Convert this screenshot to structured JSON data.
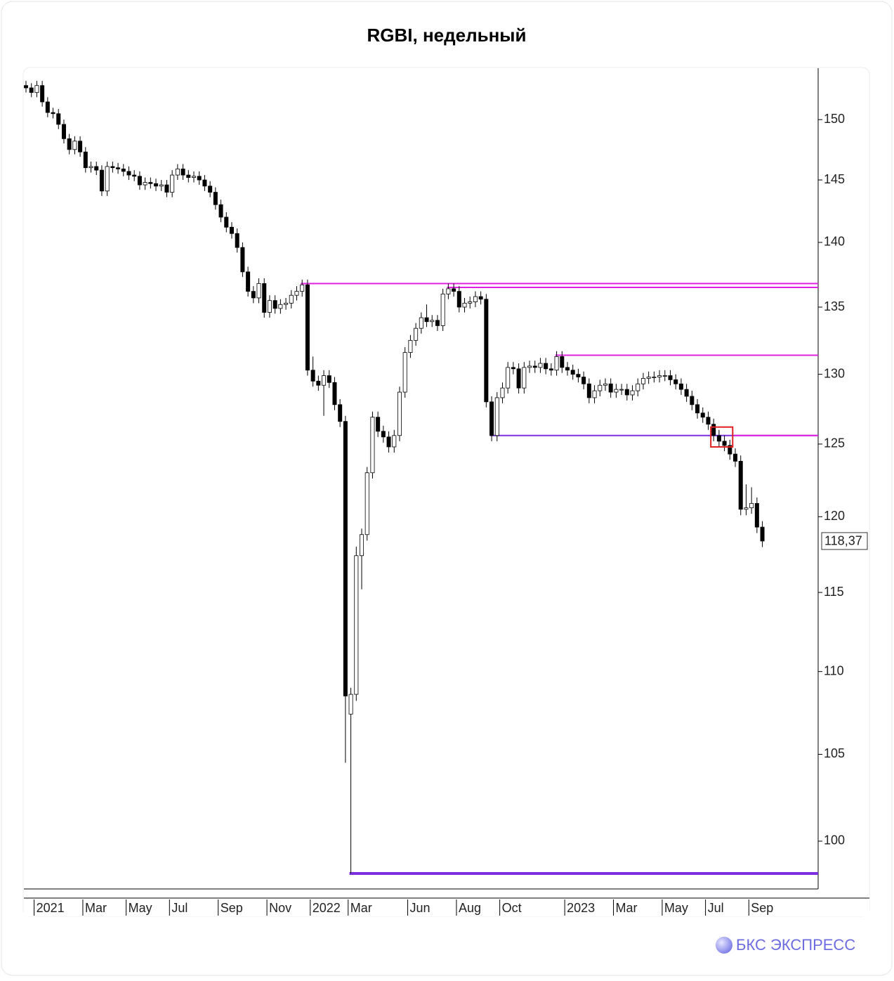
{
  "chart_data": {
    "type": "candlestick",
    "title": "RGBI, недельный",
    "log_scale": true,
    "categories": [
      null,
      null,
      "2021",
      null,
      null,
      null,
      null,
      null,
      null,
      null,
      null,
      "Mar",
      null,
      null,
      null,
      null,
      null,
      null,
      null,
      "May",
      null,
      null,
      null,
      null,
      null,
      null,
      null,
      "Jul",
      null,
      null,
      null,
      null,
      null,
      null,
      null,
      null,
      "Sep",
      null,
      null,
      null,
      null,
      null,
      null,
      null,
      null,
      "Nov",
      null,
      null,
      null,
      null,
      null,
      null,
      null,
      "2022",
      null,
      null,
      null,
      null,
      null,
      null,
      "Mar",
      null,
      null,
      null,
      null,
      null,
      null,
      null,
      null,
      null,
      null,
      "Jun",
      null,
      null,
      null,
      null,
      null,
      null,
      null,
      null,
      "Aug",
      null,
      null,
      null,
      null,
      null,
      null,
      null,
      "Oct",
      null,
      null,
      null,
      null,
      null,
      null,
      null,
      null,
      null,
      null,
      null,
      "2023",
      null,
      null,
      null,
      null,
      null,
      null,
      null,
      null,
      "Mar",
      null,
      null,
      null,
      null,
      null,
      null,
      null,
      null,
      "May",
      null,
      null,
      null,
      null,
      null,
      null,
      null,
      "Jul",
      null,
      null,
      null,
      null,
      null,
      null,
      null,
      "Sep",
      null,
      null
    ],
    "open": [
      152.9,
      152.7,
      152.3,
      152.9,
      151.5,
      150.6,
      150.5,
      149.6,
      148.4,
      147.5,
      148.2,
      147.3,
      146.0,
      146.1,
      145.8,
      144.1,
      146.1,
      146.0,
      145.9,
      145.7,
      145.4,
      145.3,
      144.6,
      144.8,
      144.7,
      144.5,
      144.6,
      144.0,
      145.4,
      145.9,
      145.4,
      145.2,
      145.3,
      145.0,
      144.5,
      144.0,
      143.0,
      142.0,
      141.2,
      140.7,
      139.6,
      137.7,
      136.2,
      135.7,
      136.8,
      134.6,
      135.5,
      134.9,
      135.2,
      135.3,
      135.9,
      136.2,
      136.7,
      130.3,
      129.5,
      129.2,
      129.9,
      129.4,
      127.8,
      126.6,
      107.4,
      108.6,
      117.4,
      118.8,
      123.0,
      126.9,
      125.9,
      125.5,
      124.8,
      125.6,
      128.7,
      131.6,
      132.5,
      133.4,
      134.2,
      133.9,
      134.0,
      133.6,
      136.0,
      136.4,
      136.2,
      135.0,
      135.3,
      135.4,
      135.8,
      135.6,
      128.0,
      125.6,
      128.3,
      129.0,
      130.5,
      130.4,
      129.0,
      130.5,
      130.6,
      130.5,
      130.8,
      130.4,
      130.3,
      131.3,
      130.5,
      130.3,
      130.0,
      129.8,
      129.3,
      128.3,
      128.8,
      129.2,
      129.3,
      128.7,
      128.9,
      128.9,
      128.5,
      128.8,
      129.3,
      129.7,
      129.8,
      129.8,
      129.9,
      129.9,
      129.6,
      129.3,
      128.9,
      128.4,
      127.8,
      127.2,
      126.9,
      126.4,
      125.6,
      125.2,
      124.9,
      124.3,
      123.8,
      120.5,
      120.6,
      120.9,
      119.3
    ],
    "high": [
      153.3,
      153.1,
      153.3,
      153.3,
      151.9,
      151.0,
      150.9,
      150.0,
      148.8,
      148.6,
      148.6,
      147.7,
      146.5,
      146.5,
      146.2,
      146.5,
      146.5,
      146.4,
      146.3,
      146.1,
      145.8,
      145.7,
      145.2,
      145.2,
      145.1,
      145.0,
      145.0,
      145.8,
      146.3,
      146.3,
      145.8,
      145.7,
      145.7,
      145.4,
      144.9,
      144.4,
      143.4,
      142.4,
      141.6,
      141.1,
      140.0,
      138.1,
      136.6,
      137.2,
      137.2,
      135.9,
      135.9,
      135.6,
      135.7,
      136.3,
      136.6,
      137.1,
      137.1,
      131.3,
      129.9,
      130.3,
      130.3,
      129.8,
      128.2,
      127.0,
      109.0,
      118.0,
      119.2,
      123.4,
      127.3,
      127.3,
      126.3,
      125.9,
      126.0,
      129.1,
      132.0,
      132.9,
      133.8,
      134.6,
      135.2,
      134.4,
      134.4,
      136.4,
      136.8,
      136.8,
      136.6,
      135.7,
      135.8,
      136.2,
      136.2,
      136.0,
      128.4,
      128.7,
      129.4,
      130.9,
      130.9,
      130.8,
      130.9,
      131.0,
      131.0,
      131.2,
      131.2,
      130.8,
      131.7,
      131.7,
      130.9,
      130.7,
      130.4,
      130.2,
      129.7,
      129.2,
      129.6,
      129.7,
      129.7,
      129.3,
      129.3,
      129.3,
      129.2,
      129.7,
      130.1,
      130.2,
      130.2,
      130.3,
      130.3,
      130.3,
      130.0,
      129.7,
      129.3,
      128.8,
      128.2,
      127.6,
      127.3,
      126.8,
      126.0,
      125.6,
      125.3,
      124.7,
      124.2,
      122.2,
      122.0,
      121.3,
      119.7
    ],
    "low": [
      152.3,
      151.9,
      151.9,
      151.1,
      150.2,
      150.1,
      149.2,
      148.0,
      147.1,
      147.1,
      146.9,
      145.6,
      145.6,
      145.4,
      143.7,
      143.7,
      145.6,
      145.5,
      145.3,
      145.0,
      144.9,
      144.2,
      144.2,
      144.3,
      144.1,
      144.1,
      143.6,
      143.6,
      145.0,
      145.0,
      144.8,
      144.8,
      144.6,
      144.1,
      143.6,
      142.6,
      141.6,
      140.8,
      140.3,
      139.2,
      137.3,
      135.8,
      135.3,
      135.3,
      134.2,
      134.2,
      134.5,
      134.5,
      134.8,
      134.9,
      135.5,
      135.8,
      129.9,
      129.1,
      128.8,
      127.0,
      129.0,
      127.4,
      126.2,
      104.5,
      98.2,
      108.2,
      115.2,
      118.4,
      122.6,
      125.5,
      125.1,
      124.4,
      124.4,
      125.2,
      128.3,
      131.2,
      132.1,
      133.0,
      133.5,
      133.5,
      133.2,
      133.2,
      135.6,
      135.8,
      134.6,
      134.6,
      134.9,
      135.0,
      135.2,
      127.6,
      125.2,
      125.2,
      127.9,
      128.6,
      130.0,
      128.6,
      128.6,
      130.1,
      130.1,
      130.1,
      130.0,
      129.9,
      129.9,
      130.1,
      129.9,
      129.6,
      129.4,
      128.9,
      127.9,
      127.9,
      128.4,
      128.8,
      128.3,
      128.3,
      128.5,
      128.1,
      128.1,
      128.4,
      128.9,
      129.3,
      129.4,
      129.4,
      129.5,
      129.2,
      128.9,
      128.5,
      128.0,
      127.4,
      126.8,
      126.5,
      126.0,
      125.2,
      124.8,
      124.5,
      123.9,
      123.4,
      120.1,
      120.1,
      120.2,
      118.9,
      117.97
    ],
    "close": [
      152.7,
      152.3,
      152.9,
      151.5,
      150.6,
      150.5,
      149.6,
      148.4,
      147.5,
      148.2,
      147.3,
      146.0,
      146.1,
      145.8,
      144.1,
      146.1,
      146.0,
      145.9,
      145.7,
      145.4,
      145.3,
      144.6,
      144.8,
      144.7,
      144.5,
      144.6,
      144.0,
      145.4,
      145.9,
      145.4,
      145.2,
      145.3,
      145.0,
      144.5,
      144.0,
      143.0,
      142.0,
      141.2,
      140.7,
      139.6,
      137.7,
      136.2,
      135.7,
      136.8,
      134.6,
      135.5,
      134.9,
      135.2,
      135.3,
      135.9,
      136.2,
      136.7,
      130.3,
      129.5,
      129.2,
      129.9,
      129.4,
      127.8,
      126.6,
      108.5,
      108.6,
      117.4,
      118.8,
      123.0,
      126.9,
      125.9,
      125.5,
      124.8,
      125.6,
      128.7,
      131.6,
      132.5,
      133.4,
      134.2,
      133.9,
      134.0,
      133.6,
      136.0,
      136.4,
      136.2,
      135.0,
      135.3,
      135.4,
      135.8,
      135.6,
      128.0,
      125.6,
      128.3,
      129.0,
      130.5,
      130.4,
      129.0,
      130.5,
      130.6,
      130.5,
      130.8,
      130.4,
      130.3,
      131.3,
      130.5,
      130.3,
      130.0,
      129.8,
      129.3,
      128.3,
      128.8,
      129.2,
      129.3,
      128.7,
      128.9,
      128.9,
      128.5,
      128.8,
      129.3,
      129.7,
      129.8,
      129.8,
      129.9,
      129.9,
      129.6,
      129.3,
      128.9,
      128.4,
      127.8,
      127.2,
      126.9,
      126.4,
      125.6,
      125.2,
      124.9,
      124.3,
      123.8,
      120.5,
      120.6,
      120.9,
      119.3,
      118.37
    ],
    "last_value": 118.37,
    "last_value_label": "118,37",
    "levels": [
      {
        "value": 136.8,
        "color": "#e020e0",
        "start": 51
      },
      {
        "value": 136.5,
        "color": "#e020e0",
        "start": 78
      },
      {
        "value": 131.4,
        "color": "#e020e0",
        "start": 98
      },
      {
        "value": 125.6,
        "color": "#7b2fe0",
        "start": 86
      },
      {
        "value": 125.6,
        "color": "#e020e0",
        "start": 131
      },
      {
        "value": 98.2,
        "color": "#7b2fe0",
        "start": 60
      }
    ],
    "highlight": {
      "from": 127,
      "to": 130,
      "low": 124.8,
      "high": 126.2,
      "color": "#e02020"
    },
    "ylim": [
      97.35,
      154.4
    ],
    "yticks": [
      100,
      105,
      110,
      115,
      120,
      125,
      130,
      135,
      140,
      145,
      150
    ]
  },
  "brand": "БКС ЭКСПРЕСС"
}
